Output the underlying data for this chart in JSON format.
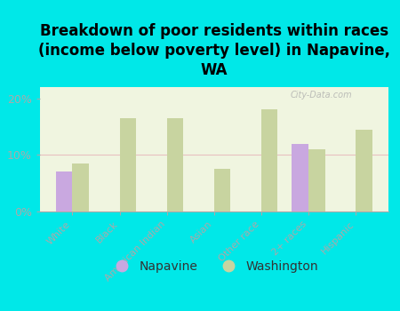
{
  "title": "Breakdown of poor residents within races\n(income below poverty level) in Napavine,\nWA",
  "categories": [
    "White",
    "Black",
    "American Indian",
    "Asian",
    "Other race",
    "2+ races",
    "Hispanic"
  ],
  "napavine": [
    7.0,
    0,
    0,
    0,
    0,
    12.0,
    0
  ],
  "washington": [
    8.5,
    16.5,
    16.5,
    7.5,
    18.0,
    11.0,
    14.5
  ],
  "napavine_color": "#c9a8e0",
  "washington_color": "#c8d4a0",
  "bg_color": "#00e8e8",
  "plot_bg_top": "#f0f5e0",
  "plot_bg_bottom": "#ffffff",
  "ylim": [
    0,
    22
  ],
  "yticks": [
    0,
    10,
    20
  ],
  "ytick_labels": [
    "0%",
    "10%",
    "20%"
  ],
  "watermark": "City-Data.com",
  "legend_napavine": "Napavine",
  "legend_washington": "Washington",
  "title_fontsize": 12,
  "bar_width": 0.35
}
